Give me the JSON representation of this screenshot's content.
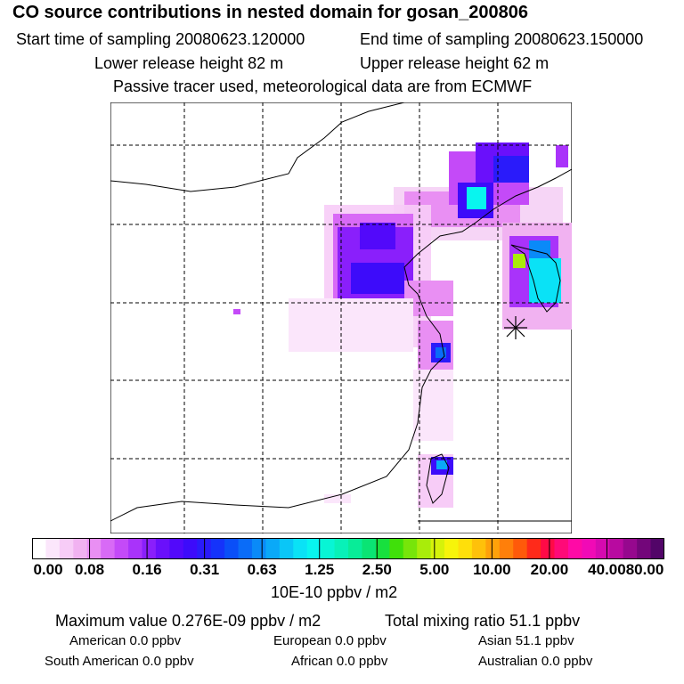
{
  "header": {
    "title": "CO  source contributions in nested domain for gosan_200806",
    "start_label": "Start time of sampling 20080623.120000",
    "end_label": "End time of sampling 20080623.150000",
    "lower_label": "Lower release height   82 m",
    "upper_label": "Upper release height   62 m",
    "note": "Passive tracer used, meteorological data are from ECMWF"
  },
  "colorbar": {
    "ticks": [
      "0.00",
      "0.08",
      "0.16",
      "0.31",
      "0.63",
      "1.25",
      "2.50",
      "5.00",
      "10.00",
      "20.00",
      "40.00",
      "80.00"
    ],
    "unit": "10E-10 ppbv / m2",
    "colors": [
      "#ffffff",
      "#fbe6fb",
      "#f7ccf7",
      "#f1b2f1",
      "#e98ff3",
      "#d86af6",
      "#c44af8",
      "#a933fa",
      "#8a1ffb",
      "#6a10fb",
      "#5209fa",
      "#3d0bfa",
      "#2a1bfa",
      "#1533fa",
      "#0a4ff8",
      "#0a6cf8",
      "#0a8af8",
      "#0aa9f8",
      "#0ac6f7",
      "#0ae2f6",
      "#08f5ef",
      "#08f5d5",
      "#08f1b8",
      "#08ec98",
      "#0ae474",
      "#18e03e",
      "#40e00a",
      "#77e50a",
      "#a9ec0a",
      "#d6f20a",
      "#f7f40a",
      "#ffdf0a",
      "#ffc10a",
      "#ffa10a",
      "#ff7f0a",
      "#ff5a0a",
      "#ff2a1a",
      "#ff0a46",
      "#ff0a78",
      "#ff0aa6",
      "#f10ab6",
      "#d60ab0",
      "#b80aa0",
      "#96088e",
      "#73067a",
      "#520568"
    ]
  },
  "stats": {
    "max_label": "Maximum value  0.276E-09 ppbv / m2",
    "total_label": "Total mixing ratio       51.1 ppbv",
    "american": "American         0.0 ppbv",
    "european": "European         0.0 ppbv",
    "asian": "Asian       51.1 ppbv",
    "south_american": "South American         0.0 ppbv",
    "african": "African         0.0 ppbv",
    "australian": "Australian         0.0 ppbv"
  }
}
